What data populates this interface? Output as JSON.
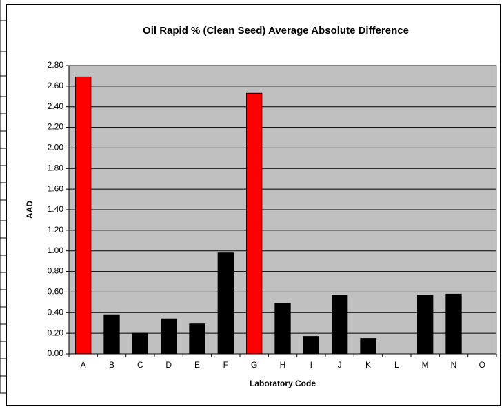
{
  "chart_data": {
    "type": "bar",
    "title": "Oil Rapid % (Clean Seed) Average Absolute Difference",
    "x_label": "Laboratory Code",
    "y_label": "AAD",
    "categories": [
      "A",
      "B",
      "C",
      "D",
      "E",
      "F",
      "G",
      "H",
      "I",
      "J",
      "K",
      "L",
      "M",
      "N",
      "O"
    ],
    "values": [
      2.69,
      0.38,
      0.2,
      0.34,
      0.29,
      0.98,
      2.53,
      0.49,
      0.17,
      0.57,
      0.15,
      null,
      0.57,
      0.58,
      null
    ],
    "colors": [
      "#ff0000",
      "#000000",
      "#000000",
      "#000000",
      "#000000",
      "#000000",
      "#ff0000",
      "#000000",
      "#000000",
      "#000000",
      "#000000",
      "#000000",
      "#000000",
      "#000000",
      "#000000"
    ],
    "ylim": [
      0,
      2.8
    ],
    "yticks": [
      {
        "value": 0,
        "label": "0.00"
      },
      {
        "value": 0.2,
        "label": "0.20"
      },
      {
        "value": 0.4,
        "label": "0.40"
      },
      {
        "value": 0.6,
        "label": "0.60"
      },
      {
        "value": 0.8,
        "label": "0.80"
      },
      {
        "value": 1.0,
        "label": "1.00"
      },
      {
        "value": 1.2,
        "label": "1.20"
      },
      {
        "value": 1.4,
        "label": "1.40"
      },
      {
        "value": 1.6,
        "label": "1.60"
      },
      {
        "value": 1.8,
        "label": "1.80"
      },
      {
        "value": 2.0,
        "label": "2.00"
      },
      {
        "value": 2.2,
        "label": "2.20"
      },
      {
        "value": 2.4,
        "label": "2.40"
      },
      {
        "value": 2.6,
        "label": "2.60"
      },
      {
        "value": 2.8,
        "label": "2.80"
      }
    ],
    "grid": true,
    "plot_background": "#c0c0c0"
  }
}
